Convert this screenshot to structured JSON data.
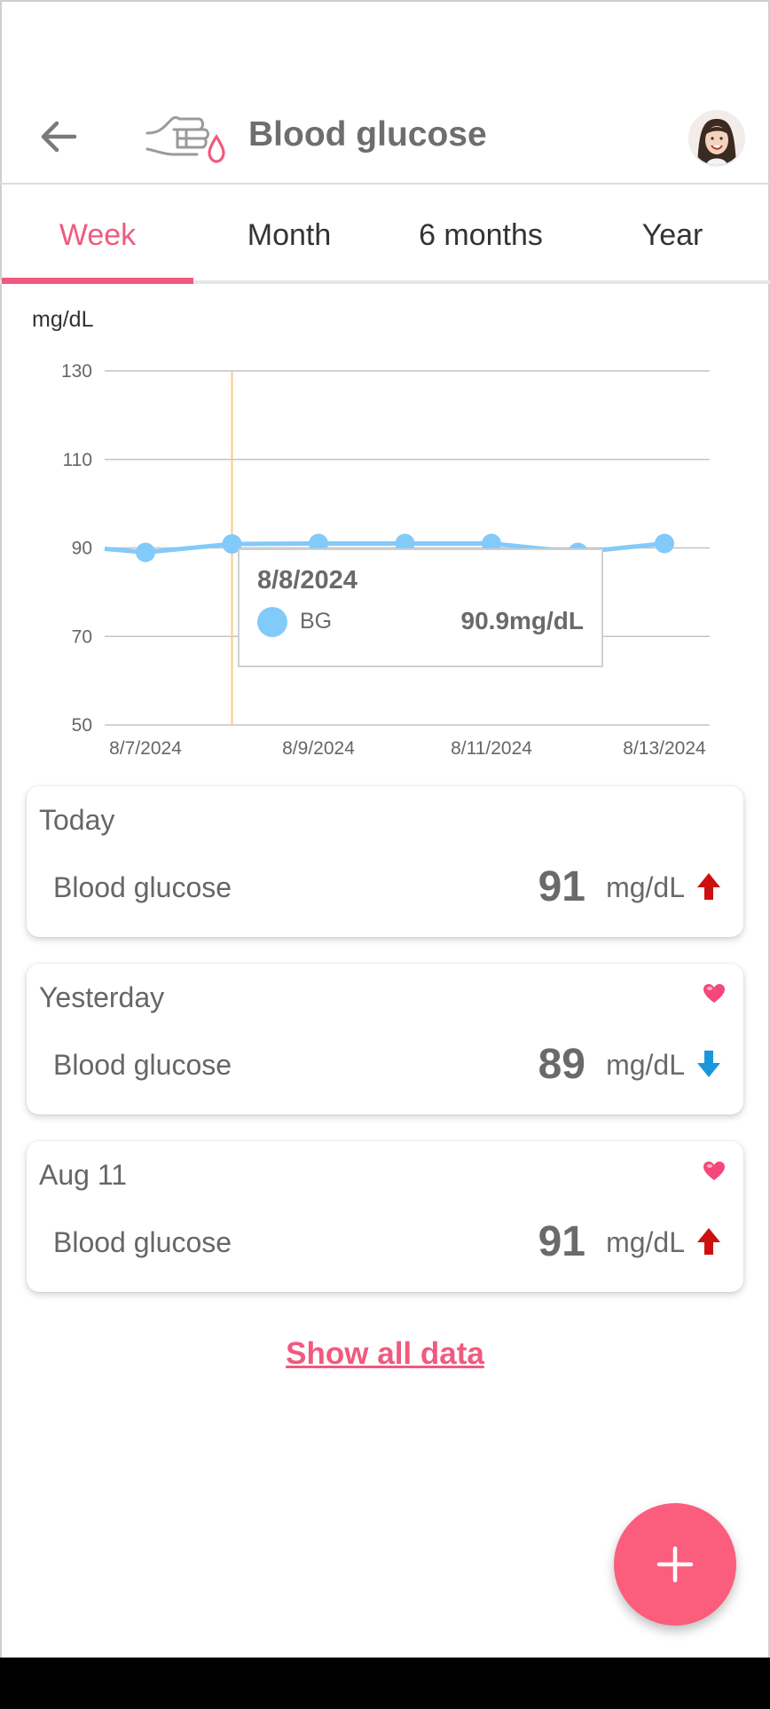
{
  "header": {
    "title": "Blood glucose",
    "back_icon": "arrow-left-icon",
    "app_icon": "finger-blood-drop-icon",
    "avatar_icon": "user-avatar"
  },
  "tabs": [
    {
      "label": "Week",
      "active": true
    },
    {
      "label": "Month",
      "active": false
    },
    {
      "label": "6 months",
      "active": false
    },
    {
      "label": "Year",
      "active": false
    }
  ],
  "chart_data": {
    "type": "line",
    "ylabel": "mg/dL",
    "ylim": [
      50,
      130
    ],
    "yticks": [
      50,
      70,
      90,
      110,
      130
    ],
    "x": [
      "8/7/2024",
      "8/8/2024",
      "8/9/2024",
      "8/10/2024",
      "8/11/2024",
      "8/12/2024",
      "8/13/2024"
    ],
    "xtick_labels": [
      "8/7/2024",
      "8/9/2024",
      "8/11/2024",
      "8/13/2024"
    ],
    "series": [
      {
        "name": "BG",
        "values": [
          89,
          90.9,
          91,
          91,
          91,
          89,
          91
        ],
        "color": "#82cafa"
      }
    ],
    "grid": true,
    "cursor_index": 1,
    "tooltip": {
      "date": "8/8/2024",
      "series": "BG",
      "value": "90.9mg/dL"
    }
  },
  "cards": [
    {
      "date": "Today",
      "label": "Blood glucose",
      "value": "91",
      "unit": "mg/dL",
      "trend": "up",
      "favorite": false
    },
    {
      "date": "Yesterday",
      "label": "Blood glucose",
      "value": "89",
      "unit": "mg/dL",
      "trend": "down",
      "favorite": true
    },
    {
      "date": "Aug 11",
      "label": "Blood glucose",
      "value": "91",
      "unit": "mg/dL",
      "trend": "up",
      "favorite": true
    }
  ],
  "show_all_label": "Show all data",
  "colors": {
    "accent": "#f05a7e",
    "series": "#82cafa",
    "trend_up": "#cc1010",
    "trend_down": "#1a96dc",
    "heart": "#f5487a"
  }
}
